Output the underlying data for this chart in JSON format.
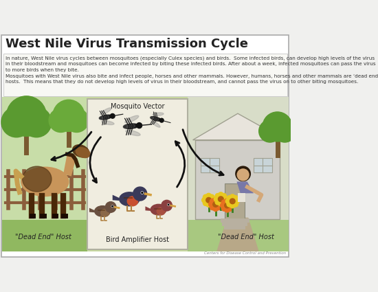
{
  "title": "West Nile Virus Transmission Cycle",
  "title_fontsize": 13,
  "title_fontweight": "bold",
  "para1": "In nature, West Nile virus cycles between mosquitoes (especially Culex species) and birds.  Some infected birds, can develop high levels of the virus\nin their bloodstream and mosquitoes can become infected by biting these infected birds. After about a week, infected mosquitoes can pass the virus\nto more birds when they bite.",
  "para2": "Mosquitoes with West Nile virus also bite and infect people, horses and other mammals. However, humans, horses and other mammals are ‘dead end’\nhosts.  This means that they do not develop high levels of virus in their bloodstream, and cannot pass the virus on to other biting mosquitoes.",
  "label_mosquito": "Mosquito Vector",
  "label_bird": "Bird Amplifier Host",
  "label_horse": "\"Dead End\" Host",
  "label_human": "\"Dead End\" Host",
  "footer": "Centers for Disease Control and Prevention",
  "bg_white": "#ffffff",
  "bg_outer": "#f0f0ee",
  "bg_left_green": "#8ab870",
  "bg_left_green2": "#a8c888",
  "bg_right_beige": "#d4cfc0",
  "bg_right_green": "#c8d8b0",
  "center_box_bg": "#f0ede0",
  "center_box_border": "#b0b0a0",
  "arrow_color": "#111111",
  "text_dark": "#222222",
  "text_para": "#333333",
  "fence_color": "#8B5E3C",
  "tree_trunk": "#7a5a30",
  "tree_leaf": "#4a8a2a",
  "tree_leaf2": "#6aaa40",
  "horse_body": "#8B6340",
  "horse_dark": "#3a2010",
  "house_wall": "#d0cec8",
  "house_roof": "#e8e4dc",
  "path_color": "#b8a888",
  "flower_yellow": "#e8c820",
  "flower_orange": "#e87020",
  "sky_left": "#c8dda8",
  "sky_right": "#d8ddc8"
}
